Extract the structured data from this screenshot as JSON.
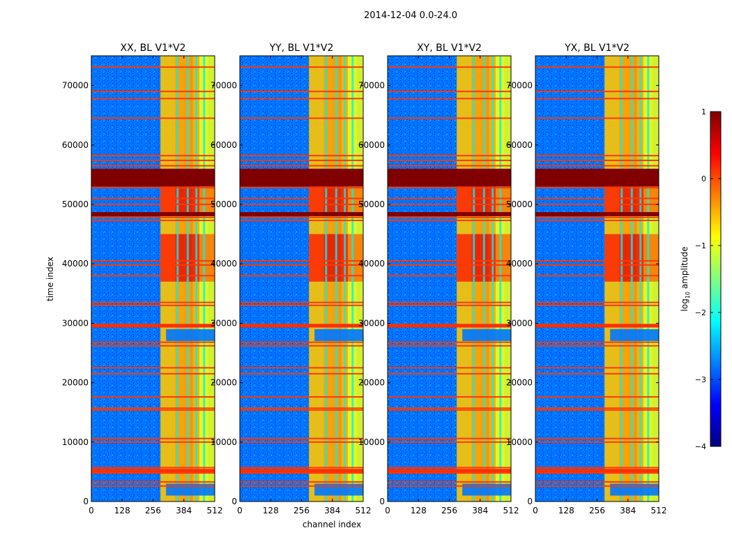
{
  "chart_data": {
    "type": "heatmap",
    "suptitle": "2014-12-04 0.0-24.0",
    "xlabel": "channel index",
    "ylabel": "time index",
    "xlim": [
      0,
      512
    ],
    "ylim": [
      0,
      75000
    ],
    "xticks": [
      0,
      128,
      256,
      384,
      512
    ],
    "yticks": [
      0,
      10000,
      20000,
      30000,
      40000,
      50000,
      60000,
      70000
    ],
    "ytick_labels": [
      "0",
      "10000",
      "20000",
      "30000",
      "40000",
      "50000",
      "60000",
      "70000"
    ],
    "panels": [
      {
        "title": "XX, BL V1*V2",
        "pol": "XX"
      },
      {
        "title": "YY, BL V1*V2",
        "pol": "YY"
      },
      {
        "title": "XY, BL V1*V2",
        "pol": "XY"
      },
      {
        "title": "YX, BL V1*V2",
        "pol": "YX"
      }
    ],
    "colorbar": {
      "label_prefix": "log",
      "label_sub": "10",
      "label_suffix": " amplitude",
      "range": [
        -4,
        1
      ],
      "ticks": [
        1,
        0,
        -1,
        -2,
        -3,
        -4
      ],
      "tick_labels": [
        "1",
        "0",
        "−1",
        "−2",
        "−3",
        "−4"
      ],
      "colormap": "jet"
    },
    "background_level": -2.8,
    "saturated_time_bands": [
      [
        53000,
        56000
      ],
      [
        48000,
        48700
      ]
    ],
    "flagged_time_rows": [
      73100,
      69000,
      67800,
      64500,
      58200,
      57400,
      56500,
      52800,
      51000,
      50000,
      47800,
      47300,
      40500,
      39800,
      38000,
      33500,
      33000,
      29600,
      29400,
      26800,
      26200,
      22500,
      21500,
      17600,
      15700,
      15400,
      10600,
      10000,
      5700,
      5200,
      4800,
      3300,
      2600
    ],
    "signal_channel_columns": [
      {
        "channel": 336,
        "level": -0.6
      },
      {
        "channel": 380,
        "level": -0.4
      },
      {
        "channel": 417,
        "level": -0.4
      },
      {
        "channel": 453,
        "level": -0.5
      },
      {
        "channel": 480,
        "level": -1.0
      }
    ],
    "bright_time_bands": [
      [
        37000,
        45000
      ],
      [
        48000,
        53000
      ]
    ],
    "blank_time_gaps": [
      [
        27000,
        29000
      ],
      [
        1000,
        3000
      ]
    ]
  }
}
